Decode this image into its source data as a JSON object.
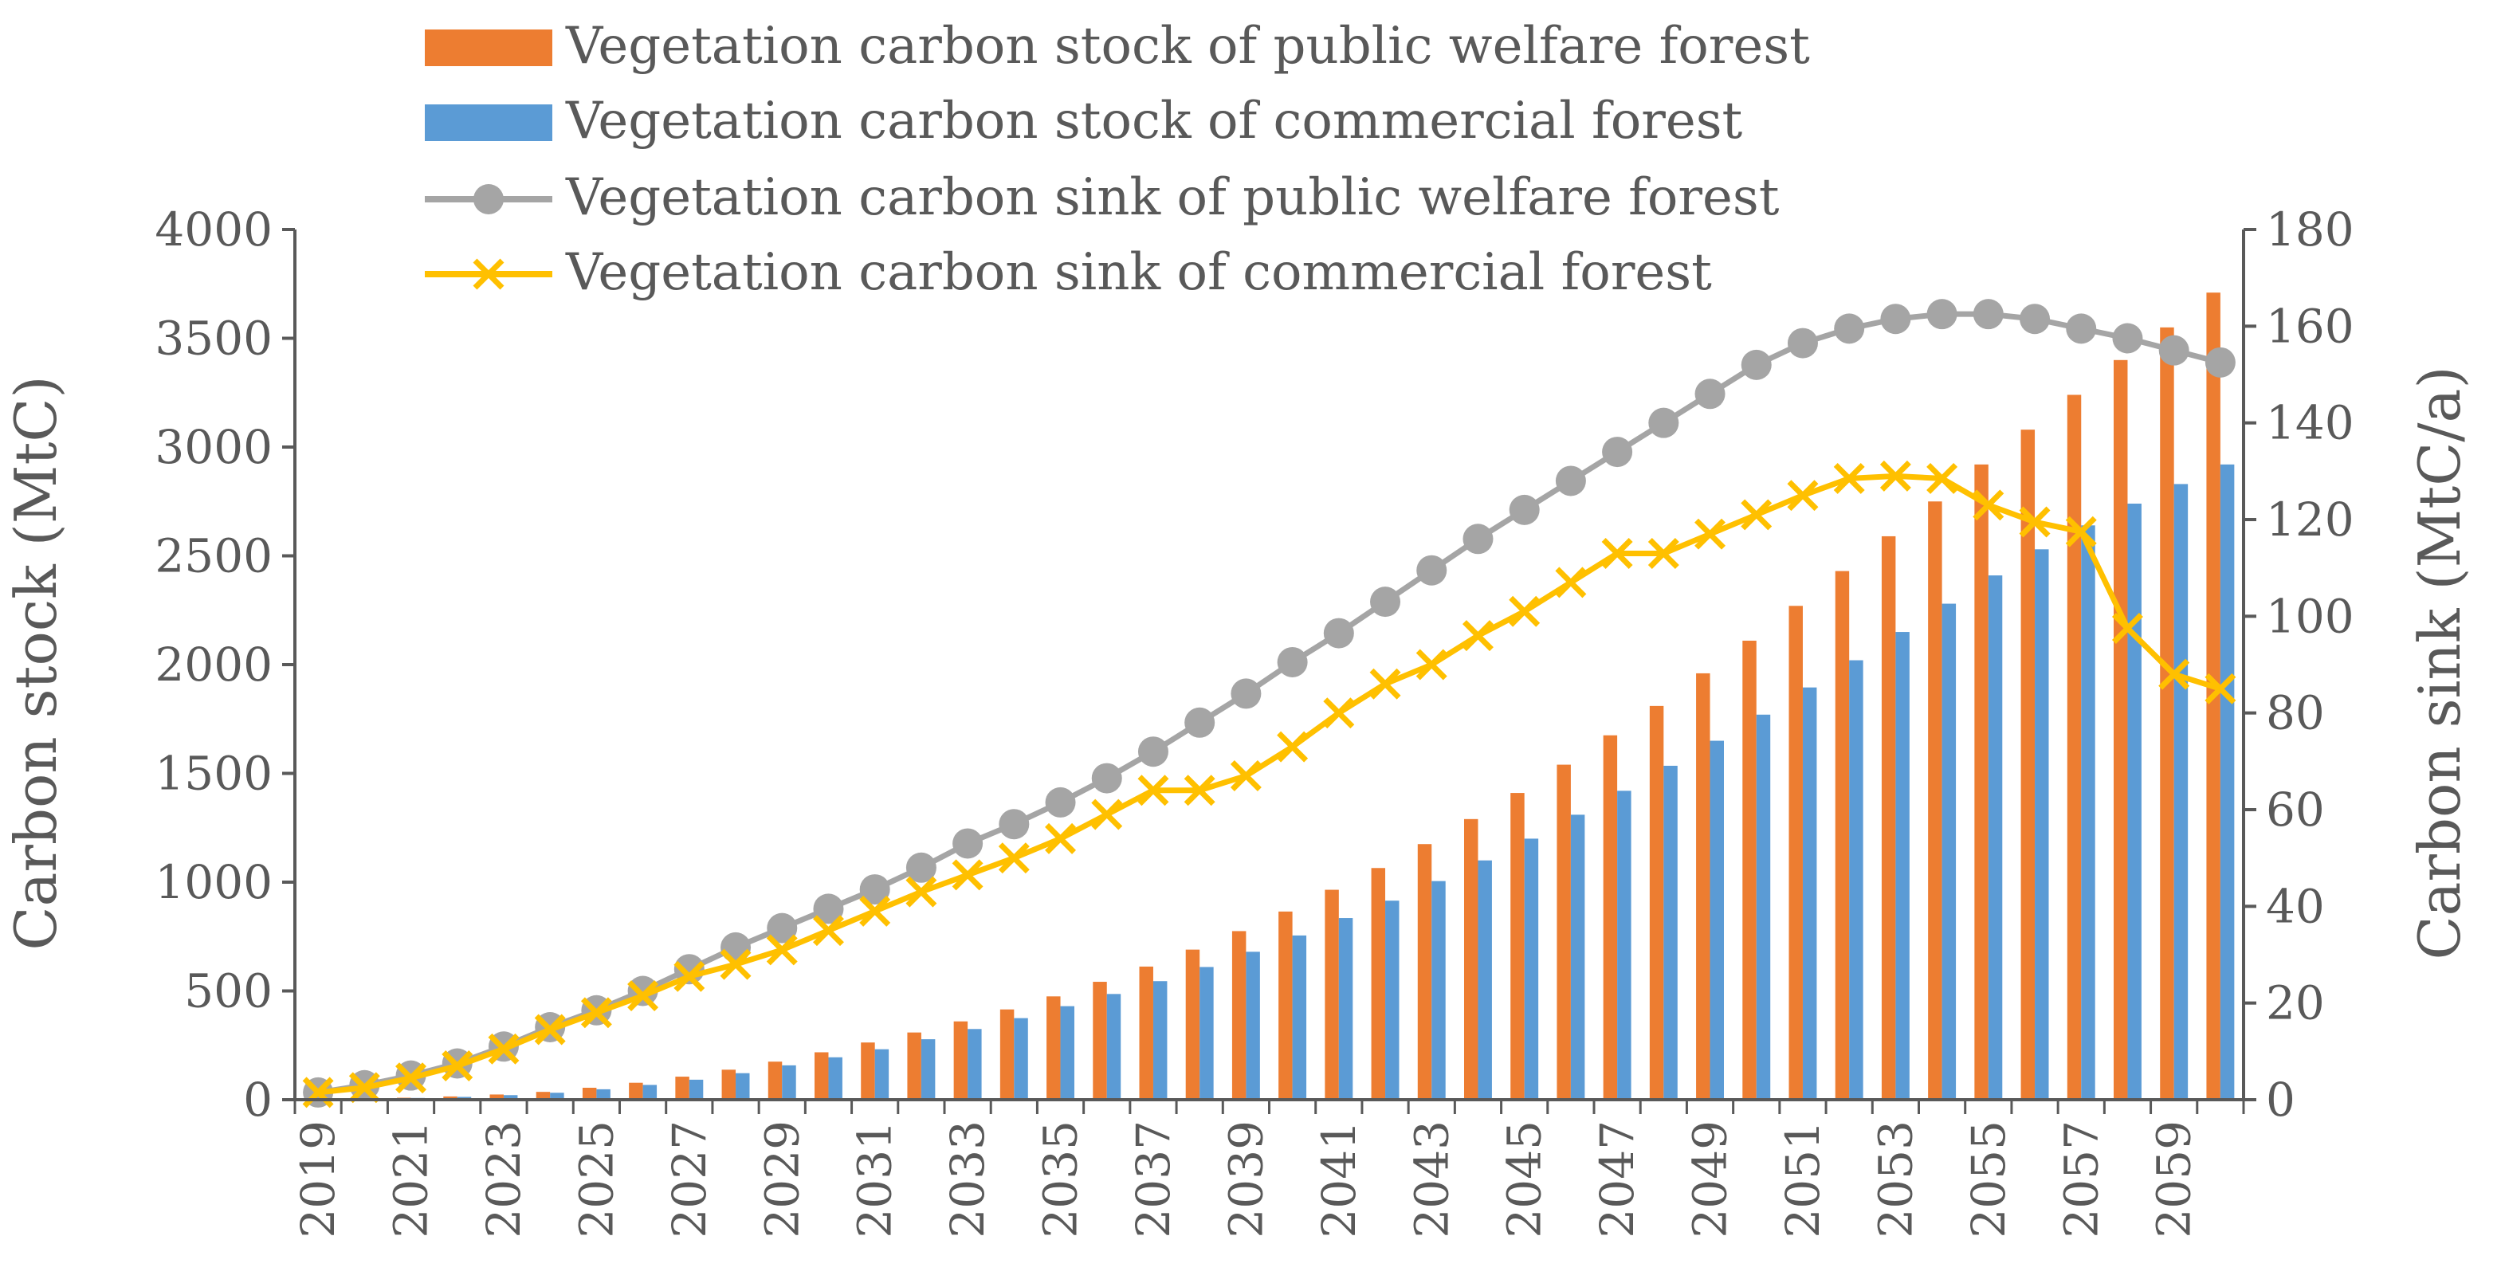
{
  "chart_data": {
    "type": "bar",
    "title": "",
    "xlabel": "",
    "categories": [
      "2019",
      "2020",
      "2021",
      "2022",
      "2023",
      "2024",
      "2025",
      "2026",
      "2027",
      "2028",
      "2029",
      "2030",
      "2031",
      "2032",
      "2033",
      "2034",
      "2035",
      "2036",
      "2037",
      "2038",
      "2039",
      "2040",
      "2041",
      "2042",
      "2043",
      "2044",
      "2045",
      "2046",
      "2047",
      "2048",
      "2049",
      "2050",
      "2051",
      "2052",
      "2053",
      "2054",
      "2055",
      "2056",
      "2057",
      "2058",
      "2059",
      "2060"
    ],
    "x_tick_labels": [
      "2019",
      "2021",
      "2023",
      "2025",
      "2027",
      "2029",
      "2031",
      "2033",
      "2035",
      "2037",
      "2039",
      "2041",
      "2043",
      "2045",
      "2047",
      "2049",
      "2051",
      "2053",
      "2055",
      "2057",
      "2059"
    ],
    "y_left": {
      "label": "Carbon stock (MtC)",
      "ylim": [
        0,
        4000
      ],
      "ticks": [
        "0",
        "500",
        "1000",
        "1500",
        "2000",
        "2500",
        "3000",
        "3500",
        "4000"
      ]
    },
    "y_right": {
      "label": "Carbon sink (MtC/a)",
      "ylim": [
        0,
        180
      ],
      "ticks": [
        "0",
        "20",
        "40",
        "60",
        "80",
        "100",
        "120",
        "140",
        "160",
        "180"
      ]
    },
    "legend_position": "top-center",
    "series": [
      {
        "name": "Vegetation carbon stock of public welfare forest",
        "kind": "bar",
        "axis": "left",
        "color": "#ED7D31",
        "values": [
          1,
          4,
          9,
          15,
          24,
          36,
          55,
          78,
          106,
          138,
          175,
          218,
          263,
          309,
          360,
          415,
          475,
          542,
          612,
          690,
          775,
          865,
          965,
          1065,
          1175,
          1290,
          1410,
          1540,
          1675,
          1810,
          1960,
          2110,
          2270,
          2430,
          2590,
          2750,
          2920,
          3080,
          3240,
          3400,
          3550,
          3710
        ]
      },
      {
        "name": "Vegetation carbon stock of commercial forest",
        "kind": "bar",
        "axis": "left",
        "color": "#5B9BD5",
        "values": [
          1,
          3,
          8,
          13,
          21,
          32,
          48,
          68,
          92,
          122,
          158,
          195,
          232,
          278,
          325,
          375,
          430,
          486,
          545,
          610,
          680,
          755,
          835,
          915,
          1005,
          1100,
          1200,
          1310,
          1420,
          1535,
          1650,
          1770,
          1895,
          2020,
          2150,
          2280,
          2410,
          2530,
          2640,
          2740,
          2830,
          2920
        ]
      },
      {
        "name": "Vegetation carbon sink of public welfare forest",
        "kind": "line",
        "marker": "circle",
        "axis": "right",
        "color": "#A5A5A5",
        "values": [
          1.5,
          3,
          5,
          7.5,
          11,
          15,
          18.5,
          22.5,
          27,
          31.5,
          35.5,
          39.5,
          43.5,
          48,
          53,
          57,
          61.5,
          66.5,
          72,
          78,
          84,
          90.5,
          96.5,
          103,
          109.5,
          116,
          122,
          128,
          134,
          140,
          146,
          152,
          156.5,
          159.5,
          161.5,
          162.5,
          162.5,
          161.5,
          159.5,
          157.5,
          155,
          152.5
        ]
      },
      {
        "name": "Vegetation carbon sink of commercial forest",
        "kind": "line",
        "marker": "x",
        "axis": "right",
        "color": "#FFC000",
        "values": [
          1.5,
          2.5,
          4.5,
          7,
          10.5,
          14.5,
          18,
          21.5,
          25.5,
          28,
          31,
          35,
          39,
          43,
          46.5,
          50,
          54,
          59,
          64,
          64,
          67,
          73,
          80,
          86,
          90,
          96,
          101,
          107,
          113,
          113,
          117,
          121,
          125,
          128.5,
          129,
          128.5,
          123,
          119.5,
          117.5,
          97.5,
          88,
          85
        ]
      }
    ]
  }
}
